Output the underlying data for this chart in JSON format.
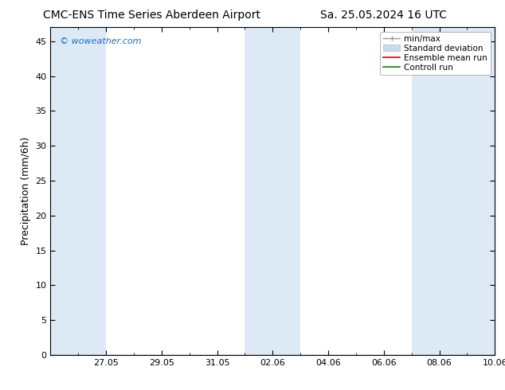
{
  "title_left": "CMC-ENS Time Series Aberdeen Airport",
  "title_right": "Sa. 25.05.2024 16 UTC",
  "ylabel": "Precipitation (mm/6h)",
  "watermark": "© woweather.com",
  "watermark_color": "#1a6fc4",
  "ylim": [
    0,
    47
  ],
  "yticks": [
    0,
    5,
    10,
    15,
    20,
    25,
    30,
    35,
    40,
    45
  ],
  "xlim": [
    0,
    16
  ],
  "x_tick_labels": [
    "27.05",
    "29.05",
    "31.05",
    "02.06",
    "04.06",
    "06.06",
    "08.06",
    "10.06"
  ],
  "x_tick_positions": [
    2,
    4,
    6,
    8,
    10,
    12,
    14,
    16
  ],
  "shaded_bands": [
    {
      "x_start": 0.0,
      "x_end": 2.0,
      "color": "#ddeaf6"
    },
    {
      "x_start": 7.0,
      "x_end": 9.0,
      "color": "#ddeaf6"
    },
    {
      "x_start": 13.0,
      "x_end": 16.0,
      "color": "#ddeaf6"
    }
  ],
  "bg_color": "#ffffff",
  "plot_bg_color": "#ffffff",
  "spine_color": "#000000",
  "title_fontsize": 10,
  "tick_fontsize": 8,
  "ylabel_fontsize": 9,
  "legend_fontsize": 7.5
}
